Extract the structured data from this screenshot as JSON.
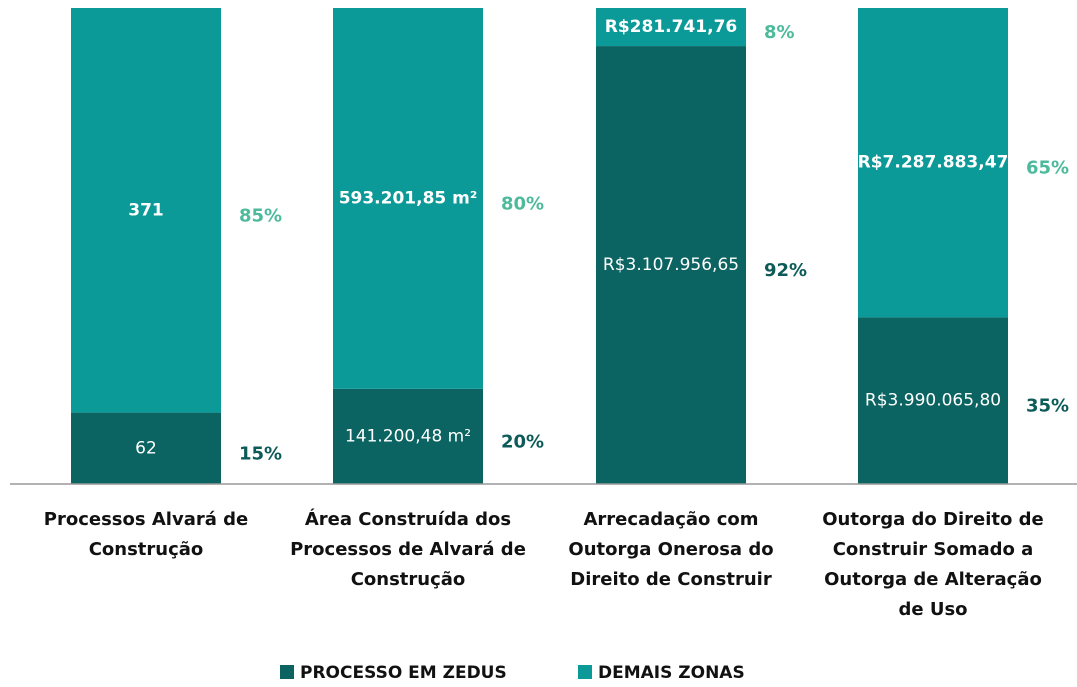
{
  "chart_data": {
    "type": "stacked_bar_100",
    "categories": [
      "Processos Alvará de\nConstrução",
      "Área Construída dos\nProcessos de Alvará de\nConstrução",
      "Arrecadação com\nOutorga Onerosa do\nDireito de Construir",
      "Outorga do Direito de\nConstruir Somado a\nOutorga de Alteração\nde Uso"
    ],
    "ylim": [
      0,
      100
    ],
    "series": [
      {
        "name": "PROCESSO EM ZEDUS",
        "color": "#0b6461",
        "label_color": "#0d5b58",
        "values": [
          15,
          20,
          92,
          35
        ],
        "value_labels": [
          "15%",
          "20%",
          "92%",
          "35%"
        ],
        "amount_labels": [
          "62",
          "141.200,48 m²",
          "R$3.107.956,65",
          "R$3.990.065,80"
        ]
      },
      {
        "name": "DEMAIS ZONAS",
        "color": "#0c9a98",
        "label_color": "#4dba9c",
        "values": [
          85,
          80,
          8,
          65
        ],
        "value_labels": [
          "85%",
          "80%",
          "8%",
          "65%"
        ],
        "amount_labels": [
          "371",
          "593.201,85 m²",
          "R$281.741,76",
          "R$7.287.883,47"
        ]
      }
    ],
    "legend": "bottom"
  }
}
